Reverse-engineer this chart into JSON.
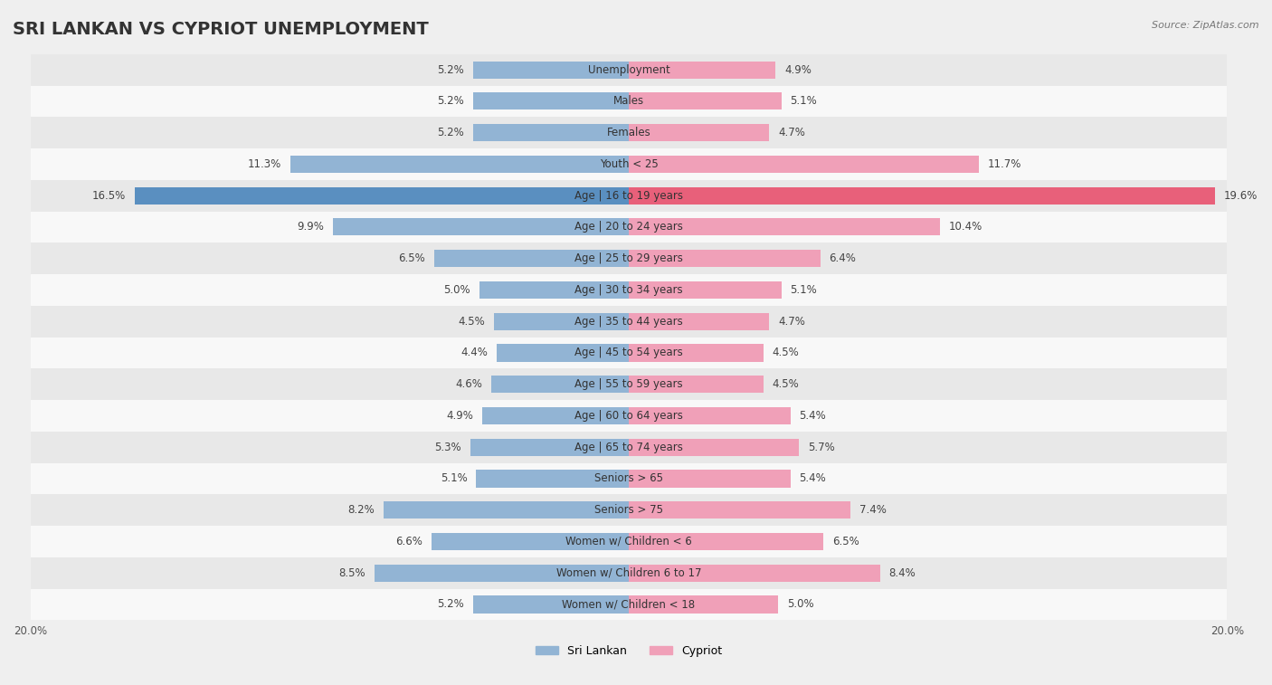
{
  "title": "SRI LANKAN VS CYPRIOT UNEMPLOYMENT",
  "source": "Source: ZipAtlas.com",
  "categories": [
    "Unemployment",
    "Males",
    "Females",
    "Youth < 25",
    "Age | 16 to 19 years",
    "Age | 20 to 24 years",
    "Age | 25 to 29 years",
    "Age | 30 to 34 years",
    "Age | 35 to 44 years",
    "Age | 45 to 54 years",
    "Age | 55 to 59 years",
    "Age | 60 to 64 years",
    "Age | 65 to 74 years",
    "Seniors > 65",
    "Seniors > 75",
    "Women w/ Children < 6",
    "Women w/ Children 6 to 17",
    "Women w/ Children < 18"
  ],
  "sri_lankan": [
    5.2,
    5.2,
    5.2,
    11.3,
    16.5,
    9.9,
    6.5,
    5.0,
    4.5,
    4.4,
    4.6,
    4.9,
    5.3,
    5.1,
    8.2,
    6.6,
    8.5,
    5.2
  ],
  "cypriot": [
    4.9,
    5.1,
    4.7,
    11.7,
    19.6,
    10.4,
    6.4,
    5.1,
    4.7,
    4.5,
    4.5,
    5.4,
    5.7,
    5.4,
    7.4,
    6.5,
    8.4,
    5.0
  ],
  "sri_lankan_color": "#92b4d4",
  "cypriot_color": "#f0a0b8",
  "highlight_sri_lankan_color": "#5a8fc0",
  "highlight_cypriot_color": "#e8607a",
  "background_color": "#efefef",
  "row_bg_light": "#e8e8e8",
  "row_bg_white": "#f8f8f8",
  "axis_max": 20.0,
  "bar_height": 0.55,
  "title_fontsize": 14,
  "label_fontsize": 8.5,
  "legend_fontsize": 9,
  "highlight_row": "Age | 16 to 19 years"
}
